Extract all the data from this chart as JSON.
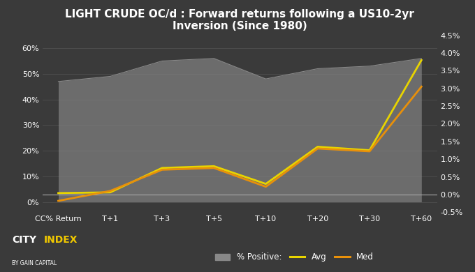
{
  "title": "LIGHT CRUDE OC/d : Forward returns following a US10-2yr\nInversion (Since 1980)",
  "categories": [
    "CC% Return",
    "T+1",
    "T+3",
    "T+5",
    "T+10",
    "T+20",
    "T+30",
    "T+60"
  ],
  "pct_positive": [
    47,
    49,
    55,
    56,
    48,
    52,
    53,
    56
  ],
  "avg": [
    0.04,
    0.06,
    0.75,
    0.8,
    0.3,
    1.35,
    1.25,
    3.8
  ],
  "med": [
    -0.18,
    0.1,
    0.7,
    0.75,
    0.22,
    1.3,
    1.22,
    3.05
  ],
  "left_yticks": [
    0,
    10,
    20,
    30,
    40,
    50,
    60
  ],
  "right_yticks": [
    -0.5,
    0.0,
    0.5,
    1.0,
    1.5,
    2.0,
    2.5,
    3.0,
    3.5,
    4.0,
    4.5
  ],
  "bg_color": "#3a3a3a",
  "grid_color": "#555555",
  "text_color": "#ffffff",
  "avg_color": "#e8d400",
  "med_color": "#e8900a",
  "positive_fill_color": "#888888",
  "zero_line_color": "#aaaaaa",
  "city_white": "#ffffff",
  "city_yellow": "#f0c800",
  "title_fontsize": 11,
  "tick_fontsize": 8,
  "legend_fontsize": 8.5
}
